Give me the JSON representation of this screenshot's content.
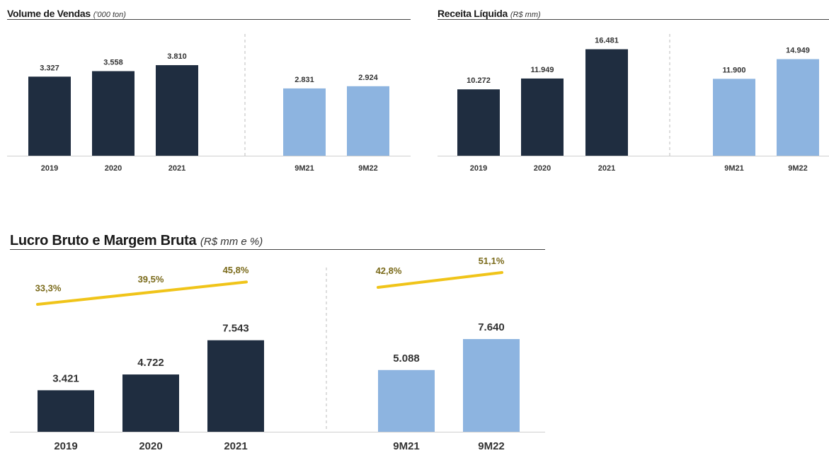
{
  "colors": {
    "actual": "#1f2d40",
    "period": "#8db4e0",
    "margin_line": "#f0c419",
    "margin_text": "#7a6a1a"
  },
  "chart_data": [
    {
      "type": "bar",
      "title": "Volume de Vendas",
      "subtitle": "('000 ton)",
      "categories": [
        "2019",
        "2020",
        "2021",
        "9M21",
        "9M22"
      ],
      "values": [
        3327,
        3558,
        3810,
        2831,
        2924
      ],
      "value_labels": [
        "3.327",
        "3.558",
        "3.810",
        "2.831",
        "2.924"
      ],
      "ylim": [
        0,
        5300
      ]
    },
    {
      "type": "bar",
      "title": "Receita Líquida",
      "subtitle": "(R$ mm)",
      "categories": [
        "2019",
        "2020",
        "2021",
        "9M21",
        "9M22"
      ],
      "values": [
        10272,
        11949,
        16481,
        11900,
        14949
      ],
      "value_labels": [
        "10.272",
        "11.949",
        "16.481",
        "11.900",
        "14.949"
      ],
      "ylim": [
        0,
        19500
      ]
    },
    {
      "type": "bar",
      "title": "Lucro Bruto e Margem Bruta",
      "subtitle": "(R$ mm e %)",
      "categories": [
        "2019",
        "2020",
        "2021",
        "9M21",
        "9M22"
      ],
      "values": [
        3421,
        4722,
        7543,
        5088,
        7640
      ],
      "value_labels": [
        "3.421",
        "4.722",
        "7.543",
        "5.088",
        "7.640"
      ],
      "ylim": [
        0,
        14000
      ],
      "series": [
        {
          "values": [
            3421,
            4722,
            7543,
            5088,
            7640
          ]
        },
        {
          "values": [
            33.3,
            39.5,
            45.8,
            42.8,
            51.1
          ],
          "labels": [
            "33,3%",
            "39,5%",
            "45,8%",
            "42,8%",
            "51,1%"
          ]
        }
      ],
      "margin_range": [
        0,
        65
      ]
    }
  ]
}
